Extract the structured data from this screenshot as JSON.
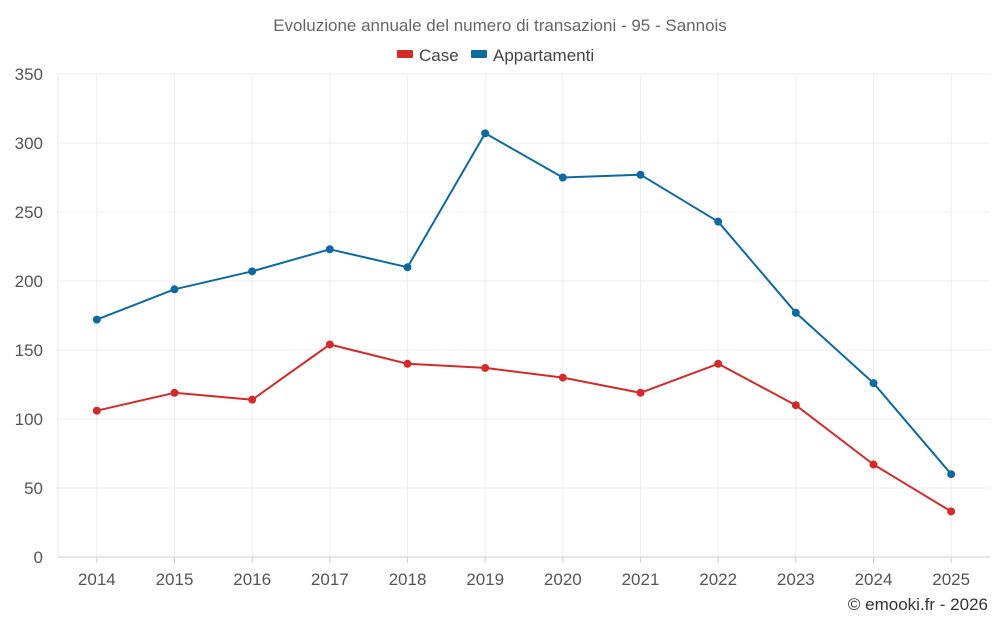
{
  "chart_data": {
    "type": "line",
    "title": "Evoluzione annuale del numero di transazioni - 95 - Sannois",
    "categories": [
      "2014",
      "2015",
      "2016",
      "2017",
      "2018",
      "2019",
      "2020",
      "2021",
      "2022",
      "2023",
      "2024",
      "2025"
    ],
    "series": [
      {
        "name": "Case",
        "color": "#d42a2a",
        "values": [
          106,
          119,
          114,
          154,
          140,
          137,
          130,
          119,
          140,
          110,
          67,
          33
        ]
      },
      {
        "name": "Appartamenti",
        "color": "#0d6aa0",
        "values": [
          172,
          194,
          207,
          223,
          210,
          307,
          275,
          277,
          243,
          177,
          126,
          60
        ]
      }
    ],
    "ylim": [
      0,
      350
    ],
    "yticks": [
      0,
      50,
      100,
      150,
      200,
      250,
      300,
      350
    ],
    "xlabel": "",
    "ylabel": "",
    "grid": true,
    "legend": "top-center"
  },
  "credit": "© emooki.fr - 2026"
}
